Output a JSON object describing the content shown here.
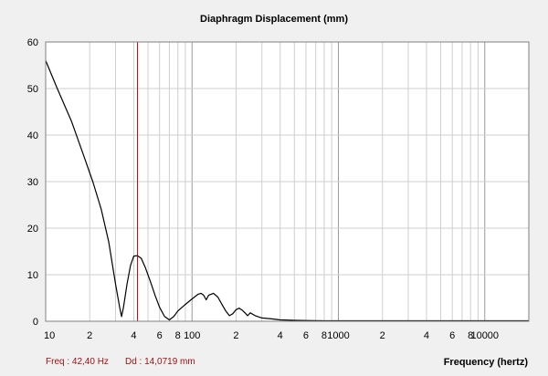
{
  "chart_data": {
    "type": "line",
    "title": "Diaphragm Displacement (mm)",
    "xlabel": "Frequency (hertz)",
    "ylabel": "",
    "x_scale": "log",
    "xlim": [
      10,
      20000
    ],
    "ylim": [
      0,
      60
    ],
    "y_ticks": [
      0,
      10,
      20,
      30,
      40,
      50,
      60
    ],
    "x_tick_labels": [
      {
        "x": 10,
        "label": "10"
      },
      {
        "x": 20,
        "label": "2"
      },
      {
        "x": 40,
        "label": "4"
      },
      {
        "x": 60,
        "label": "6"
      },
      {
        "x": 80,
        "label": "8"
      },
      {
        "x": 100,
        "label": "100"
      },
      {
        "x": 200,
        "label": "2"
      },
      {
        "x": 400,
        "label": "4"
      },
      {
        "x": 600,
        "label": "6"
      },
      {
        "x": 800,
        "label": "8"
      },
      {
        "x": 1000,
        "label": "1000"
      },
      {
        "x": 2000,
        "label": "2"
      },
      {
        "x": 4000,
        "label": "4"
      },
      {
        "x": 6000,
        "label": "6"
      },
      {
        "x": 8000,
        "label": "8"
      },
      {
        "x": 10000,
        "label": "10000"
      }
    ],
    "grid": true,
    "series": [
      {
        "color": "#000000",
        "x": [
          10,
          12,
          15,
          18,
          21,
          24,
          27,
          30,
          32,
          33,
          34,
          36,
          38,
          40,
          42.4,
          45,
          48,
          52,
          56,
          60,
          65,
          70,
          75,
          80,
          90,
          100,
          110,
          115,
          120,
          125,
          130,
          140,
          150,
          160,
          170,
          180,
          190,
          200,
          210,
          220,
          230,
          240,
          250,
          270,
          300,
          350,
          400,
          500,
          600,
          800,
          1000,
          2000,
          5000,
          10000,
          20000
        ],
        "y": [
          56,
          50,
          43,
          36,
          30,
          24,
          17,
          8,
          3,
          1,
          3,
          8,
          12,
          14,
          14.1,
          13.5,
          11.5,
          8.5,
          5.5,
          3,
          1,
          0.3,
          1,
          2.2,
          3.6,
          4.8,
          5.8,
          6,
          5.6,
          4.6,
          5.6,
          6,
          5.2,
          3.6,
          2.2,
          1.2,
          1.6,
          2.5,
          2.8,
          2.4,
          1.8,
          1.2,
          1.8,
          1.2,
          0.7,
          0.5,
          0.3,
          0.2,
          0.15,
          0.1,
          0.1,
          0.1,
          0.1,
          0.1,
          0.1
        ]
      }
    ],
    "cursor": {
      "x": 42.4,
      "color": "#b01010"
    }
  },
  "colors": {
    "grid": "#cfcfcf",
    "grid_decade": "#9a9a9a",
    "cursor": "#b01010",
    "status_text": "#a01010"
  },
  "status": {
    "freq": "Freq : 42,40 Hz",
    "dd": "Dd : 14,0719 mm"
  }
}
